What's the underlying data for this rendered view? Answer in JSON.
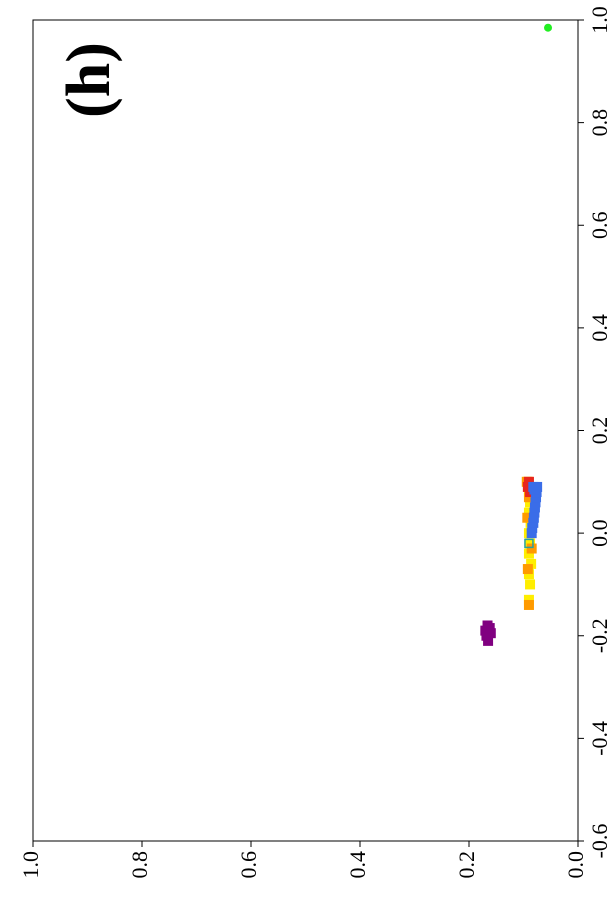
{
  "chart_data": {
    "type": "scatter",
    "title": "(h)",
    "xlim": [
      -0.6,
      1.0
    ],
    "xticks": [
      -0.6,
      -0.4,
      -0.2,
      {
        "value": 0,
        "label": "0.0"
      },
      0.2,
      0.4,
      0.6,
      0.8,
      {
        "value": 1,
        "label": "1.0"
      }
    ],
    "ylim": [
      0,
      1.0
    ],
    "yticks": [
      {
        "value": 0,
        "label": "0.0"
      },
      0.2,
      0.4,
      0.6,
      0.8,
      {
        "value": 1,
        "label": "1.0"
      }
    ],
    "grid": false,
    "series": [
      {
        "color": "#ffee00",
        "x": [
          -0.13,
          -0.1,
          -0.08,
          -0.06,
          -0.04,
          -0.02,
          0.0,
          0.02,
          0.04,
          0.06,
          0.08,
          0.1
        ],
        "y": [
          0.09,
          0.088,
          0.09,
          0.086,
          0.09,
          0.088,
          0.09,
          0.087,
          0.09,
          0.088,
          0.09,
          0.092
        ]
      },
      {
        "color": "#ff9a00",
        "x": [
          -0.14,
          -0.07,
          -0.03,
          0.03,
          0.07,
          0.1
        ],
        "y": [
          0.09,
          0.092,
          0.085,
          0.093,
          0.09,
          0.094
        ]
      },
      {
        "color": "#e8261c",
        "x": [
          0.08,
          0.09,
          0.1
        ],
        "y": [
          0.088,
          0.092,
          0.09
        ]
      },
      {
        "color": "#3a6de8",
        "x": [
          0.0,
          0.01,
          0.02,
          0.03,
          0.04,
          0.05,
          0.06,
          0.07,
          0.08,
          0.085,
          0.09,
          0.09
        ],
        "y": [
          0.085,
          0.084,
          0.082,
          0.081,
          0.08,
          0.079,
          0.078,
          0.077,
          0.076,
          0.08,
          0.075,
          0.082
        ]
      },
      {
        "color": "#800080",
        "x": [
          -0.21,
          -0.2,
          -0.195,
          -0.19,
          -0.185,
          -0.18
        ],
        "y": [
          0.165,
          0.168,
          0.16,
          0.17,
          0.162,
          0.166
        ]
      },
      {
        "color": "#2aa198",
        "marker": "open",
        "x": [
          -0.02
        ],
        "y": [
          0.09
        ]
      },
      {
        "color": "#22ee22",
        "marker": "circle",
        "x": [
          0.985
        ],
        "y": [
          0.055
        ]
      }
    ]
  }
}
